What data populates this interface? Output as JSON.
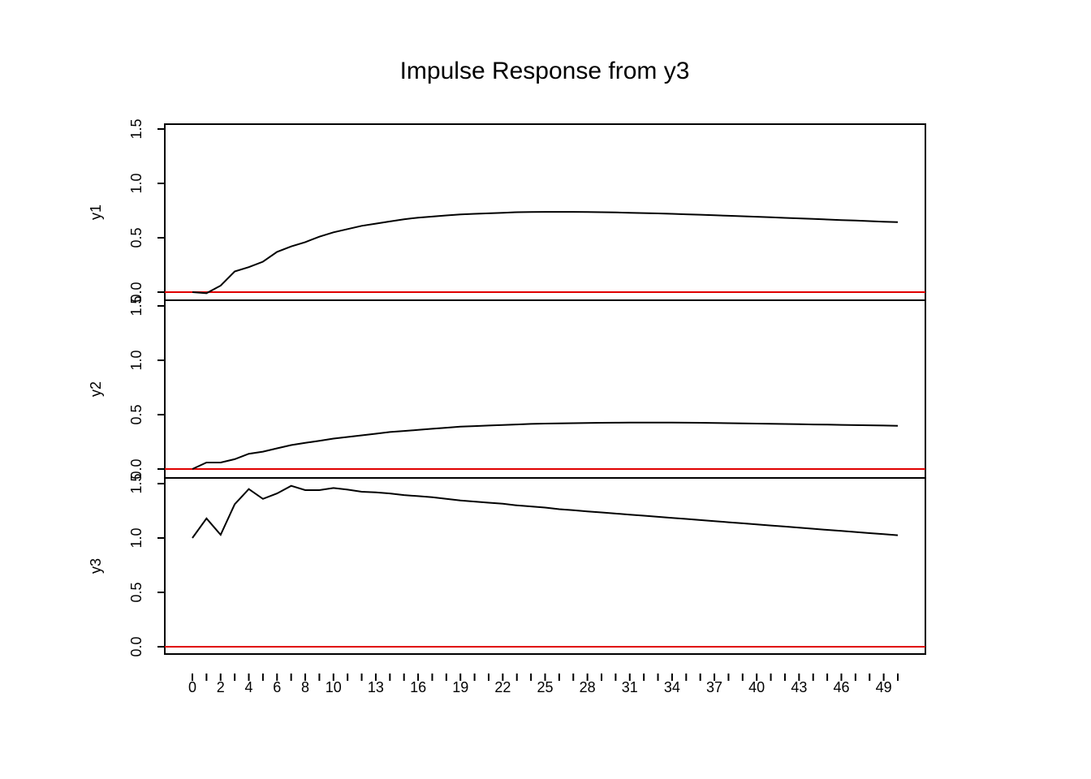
{
  "chart_data": {
    "type": "line",
    "title": "Impulse Response from y3",
    "x": [
      0,
      1,
      2,
      3,
      4,
      5,
      6,
      7,
      8,
      9,
      10,
      11,
      12,
      13,
      14,
      15,
      16,
      17,
      18,
      19,
      20,
      21,
      22,
      23,
      24,
      25,
      26,
      27,
      28,
      29,
      30,
      31,
      32,
      33,
      34,
      35,
      36,
      37,
      38,
      39,
      40,
      41,
      42,
      43,
      44,
      45,
      46,
      47,
      48,
      49,
      50
    ],
    "x_tick_labels": [
      "0",
      "2",
      "4",
      "6",
      "8",
      "10",
      "13",
      "16",
      "19",
      "22",
      "25",
      "28",
      "31",
      "34",
      "37",
      "40",
      "43",
      "46",
      "49"
    ],
    "panels": [
      {
        "ylabel": "y1",
        "ylim": [
          0,
          1.5
        ],
        "y_tick_labels": [
          "0.0",
          "0.5",
          "1.0",
          "1.5"
        ],
        "zero_line_color": "#e00000",
        "values": [
          0,
          -0.01,
          0.06,
          0.19,
          0.23,
          0.28,
          0.37,
          0.42,
          0.46,
          0.51,
          0.55,
          0.58,
          0.61,
          0.63,
          0.65,
          0.67,
          0.685,
          0.695,
          0.705,
          0.715,
          0.72,
          0.725,
          0.73,
          0.735,
          0.737,
          0.738,
          0.738,
          0.738,
          0.737,
          0.735,
          0.733,
          0.73,
          0.727,
          0.724,
          0.72,
          0.716,
          0.712,
          0.707,
          0.702,
          0.698,
          0.693,
          0.688,
          0.683,
          0.678,
          0.673,
          0.668,
          0.663,
          0.658,
          0.653,
          0.648,
          0.643
        ]
      },
      {
        "ylabel": "y2",
        "ylim": [
          0,
          1.5
        ],
        "y_tick_labels": [
          "0.0",
          "0.5",
          "1.0",
          "1.5"
        ],
        "zero_line_color": "#e00000",
        "values": [
          0,
          0.06,
          0.06,
          0.09,
          0.14,
          0.16,
          0.19,
          0.22,
          0.24,
          0.26,
          0.28,
          0.295,
          0.31,
          0.325,
          0.34,
          0.35,
          0.36,
          0.37,
          0.38,
          0.39,
          0.395,
          0.4,
          0.405,
          0.41,
          0.415,
          0.418,
          0.42,
          0.422,
          0.424,
          0.425,
          0.426,
          0.427,
          0.427,
          0.427,
          0.427,
          0.426,
          0.425,
          0.424,
          0.422,
          0.42,
          0.418,
          0.416,
          0.414,
          0.412,
          0.41,
          0.408,
          0.406,
          0.404,
          0.402,
          0.4,
          0.398
        ]
      },
      {
        "ylabel": "y3",
        "ylim": [
          0,
          1.5
        ],
        "y_tick_labels": [
          "0.0",
          "0.5",
          "1.0",
          "1.5"
        ],
        "zero_line_color": "#e00000",
        "values": [
          1.0,
          1.18,
          1.03,
          1.31,
          1.45,
          1.36,
          1.41,
          1.48,
          1.44,
          1.44,
          1.46,
          1.445,
          1.425,
          1.42,
          1.41,
          1.395,
          1.385,
          1.375,
          1.36,
          1.345,
          1.335,
          1.325,
          1.315,
          1.3,
          1.29,
          1.28,
          1.265,
          1.255,
          1.245,
          1.235,
          1.225,
          1.215,
          1.205,
          1.195,
          1.185,
          1.175,
          1.165,
          1.155,
          1.145,
          1.135,
          1.125,
          1.115,
          1.105,
          1.095,
          1.085,
          1.075,
          1.065,
          1.055,
          1.045,
          1.035,
          1.025
        ]
      }
    ]
  }
}
